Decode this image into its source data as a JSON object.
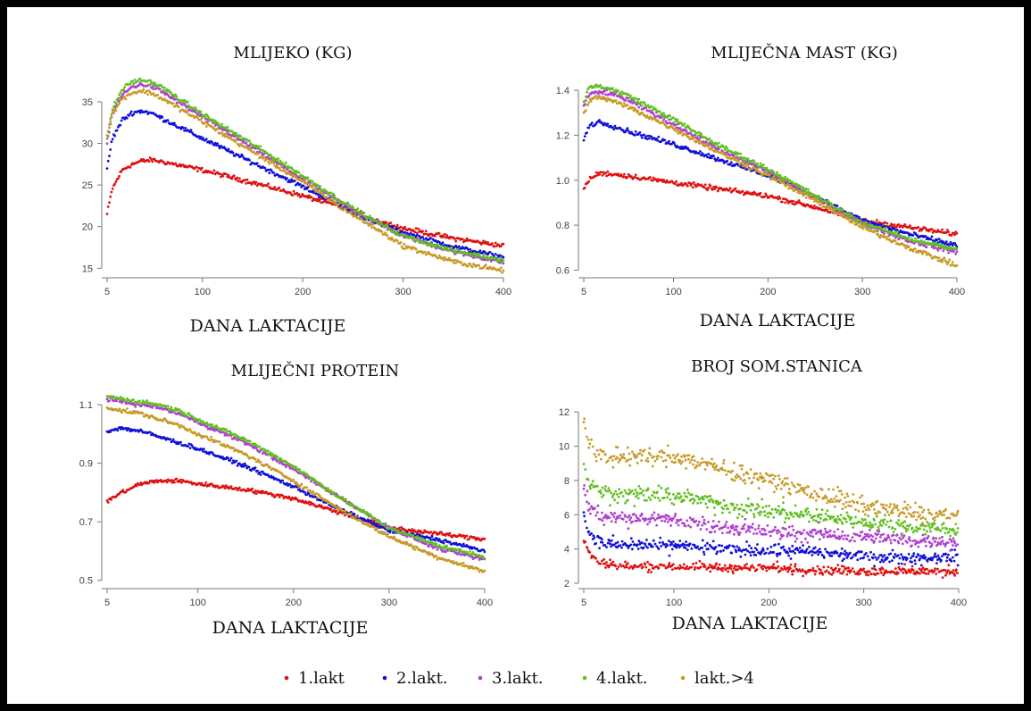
{
  "legend": {
    "items": [
      {
        "label": "1.lakt",
        "color": "#e01010"
      },
      {
        "label": "2.lakt.",
        "color": "#1010d8"
      },
      {
        "label": "3.lakt.",
        "color": "#b040d0"
      },
      {
        "label": "4.lakt.",
        "color": "#60c020"
      },
      {
        "label": "lakt.>4",
        "color": "#c89a28"
      }
    ]
  },
  "chart_data": [
    {
      "type": "scatter",
      "title": "MLIJEKO (KG)",
      "xlabel": "DANA LAKTACIJE",
      "ylabel": "",
      "xlim": [
        5,
        400
      ],
      "ylim": [
        14.5,
        38
      ],
      "xticks": [
        5,
        100,
        200,
        300,
        400
      ],
      "yticks": [
        15,
        20,
        25,
        30,
        35
      ],
      "ytick_labels": [
        "15",
        "20",
        "25",
        "30",
        "35"
      ],
      "series": [
        {
          "name": "1.lakt",
          "x": [
            5,
            10,
            20,
            30,
            40,
            50,
            60,
            80,
            100,
            150,
            200,
            250,
            270,
            300,
            350,
            400
          ],
          "y": [
            21.5,
            24.5,
            26.8,
            27.5,
            27.9,
            28.0,
            27.8,
            27.3,
            26.8,
            25.3,
            23.7,
            22.0,
            20.9,
            19.8,
            18.6,
            17.7
          ],
          "noise": 0.2
        },
        {
          "name": "2.lakt.",
          "x": [
            5,
            10,
            20,
            30,
            40,
            50,
            60,
            80,
            100,
            150,
            200,
            250,
            270,
            300,
            350,
            400
          ],
          "y": [
            27,
            30.5,
            32.8,
            33.7,
            33.9,
            33.6,
            33.0,
            31.8,
            30.6,
            27.7,
            24.8,
            21.8,
            20.6,
            19.3,
            17.6,
            16.3
          ],
          "noise": 0.2
        },
        {
          "name": "3.lakt.",
          "x": [
            5,
            10,
            20,
            30,
            40,
            50,
            60,
            80,
            100,
            150,
            200,
            250,
            270,
            300,
            350,
            400
          ],
          "y": [
            30,
            33.5,
            35.8,
            36.8,
            37.1,
            36.8,
            36.2,
            34.7,
            33.2,
            29.5,
            25.7,
            22.0,
            20.7,
            18.9,
            17.0,
            15.7
          ],
          "noise": 0.2
        },
        {
          "name": "4.lakt.",
          "x": [
            5,
            10,
            20,
            30,
            40,
            50,
            60,
            80,
            100,
            150,
            200,
            250,
            270,
            300,
            350,
            400
          ],
          "y": [
            30.5,
            34,
            36.5,
            37.4,
            37.6,
            37.3,
            36.7,
            35.1,
            33.5,
            29.9,
            26.1,
            22.2,
            20.8,
            18.9,
            17.1,
            16.0
          ],
          "noise": 0.2
        },
        {
          "name": "lakt.>4",
          "x": [
            5,
            10,
            20,
            30,
            40,
            50,
            60,
            80,
            100,
            150,
            200,
            250,
            270,
            300,
            350,
            400
          ],
          "y": [
            31,
            33.5,
            35.4,
            36.1,
            36.3,
            36.0,
            35.4,
            34.0,
            32.6,
            29.0,
            25.4,
            21.4,
            20.0,
            17.7,
            15.8,
            14.7
          ],
          "noise": 0.2
        }
      ]
    },
    {
      "type": "scatter",
      "title": "MLIJEČNA MAST (KG)",
      "xlabel": "DANA LAKTACIJE",
      "ylabel": "",
      "xlim": [
        5,
        400
      ],
      "ylim": [
        0.59,
        1.44
      ],
      "xticks": [
        5,
        100,
        200,
        300,
        400
      ],
      "yticks": [
        0.6,
        0.8,
        1.0,
        1.2,
        1.4
      ],
      "ytick_labels": [
        "0.6",
        "0.8",
        "1.0",
        "1.2",
        "1.4"
      ],
      "series": [
        {
          "name": "1.lakt",
          "x": [
            5,
            10,
            20,
            30,
            50,
            100,
            150,
            200,
            250,
            300,
            350,
            400
          ],
          "y": [
            0.96,
            1.0,
            1.03,
            1.03,
            1.02,
            0.99,
            0.96,
            0.93,
            0.88,
            0.82,
            0.79,
            0.76
          ],
          "noise": 0.008
        },
        {
          "name": "2.lakt.",
          "x": [
            5,
            10,
            20,
            30,
            50,
            100,
            150,
            200,
            250,
            300,
            350,
            400
          ],
          "y": [
            1.18,
            1.24,
            1.26,
            1.25,
            1.22,
            1.16,
            1.09,
            1.02,
            0.93,
            0.82,
            0.76,
            0.71
          ],
          "noise": 0.008
        },
        {
          "name": "3.lakt.",
          "x": [
            5,
            10,
            20,
            30,
            50,
            100,
            150,
            200,
            250,
            300,
            350,
            400
          ],
          "y": [
            1.33,
            1.38,
            1.39,
            1.39,
            1.36,
            1.25,
            1.13,
            1.04,
            0.92,
            0.81,
            0.73,
            0.68
          ],
          "noise": 0.008
        },
        {
          "name": "4.lakt.",
          "x": [
            5,
            10,
            20,
            30,
            50,
            100,
            150,
            200,
            250,
            300,
            350,
            400
          ],
          "y": [
            1.35,
            1.41,
            1.42,
            1.41,
            1.38,
            1.27,
            1.15,
            1.05,
            0.93,
            0.81,
            0.74,
            0.69
          ],
          "noise": 0.008
        },
        {
          "name": "lakt.>4",
          "x": [
            5,
            10,
            20,
            30,
            50,
            100,
            150,
            200,
            250,
            300,
            350,
            400
          ],
          "y": [
            1.3,
            1.35,
            1.37,
            1.36,
            1.33,
            1.23,
            1.12,
            1.02,
            0.91,
            0.79,
            0.7,
            0.62
          ],
          "noise": 0.008
        }
      ]
    },
    {
      "type": "scatter",
      "title": "MLIJEČNI PROTEIN",
      "xlabel": "DANA LAKTACIJE",
      "ylabel": "",
      "xlim": [
        5,
        400
      ],
      "ylim": [
        0.49,
        1.14
      ],
      "xticks": [
        5,
        100,
        200,
        300,
        400
      ],
      "yticks": [
        0.5,
        0.7,
        0.9,
        1.1
      ],
      "ytick_labels": [
        "0.5",
        "0.7",
        "0.9",
        "1.1"
      ],
      "series": [
        {
          "name": "1.lakt",
          "x": [
            5,
            20,
            40,
            60,
            80,
            100,
            150,
            200,
            250,
            300,
            350,
            400
          ],
          "y": [
            0.77,
            0.8,
            0.83,
            0.84,
            0.84,
            0.83,
            0.81,
            0.78,
            0.73,
            0.68,
            0.66,
            0.64
          ],
          "noise": 0.005
        },
        {
          "name": "2.lakt.",
          "x": [
            5,
            20,
            40,
            60,
            80,
            100,
            150,
            200,
            250,
            300,
            350,
            400
          ],
          "y": [
            1.01,
            1.02,
            1.01,
            0.99,
            0.97,
            0.95,
            0.89,
            0.82,
            0.74,
            0.67,
            0.64,
            0.6
          ],
          "noise": 0.005
        },
        {
          "name": "3.lakt.",
          "x": [
            5,
            20,
            40,
            60,
            80,
            100,
            150,
            200,
            250,
            300,
            350,
            400
          ],
          "y": [
            1.12,
            1.11,
            1.1,
            1.09,
            1.07,
            1.04,
            0.97,
            0.88,
            0.78,
            0.68,
            0.61,
            0.57
          ],
          "noise": 0.005
        },
        {
          "name": "4.lakt.",
          "x": [
            5,
            20,
            40,
            60,
            80,
            100,
            150,
            200,
            250,
            300,
            350,
            400
          ],
          "y": [
            1.13,
            1.12,
            1.11,
            1.1,
            1.08,
            1.05,
            0.98,
            0.89,
            0.78,
            0.68,
            0.62,
            0.58
          ],
          "noise": 0.005
        },
        {
          "name": "lakt.>4",
          "x": [
            5,
            20,
            40,
            60,
            80,
            100,
            150,
            200,
            250,
            300,
            350,
            400
          ],
          "y": [
            1.09,
            1.08,
            1.07,
            1.05,
            1.03,
            1.0,
            0.93,
            0.84,
            0.74,
            0.65,
            0.58,
            0.53
          ],
          "noise": 0.005
        }
      ]
    },
    {
      "type": "scatter",
      "title": "BROJ SOM.STANICA",
      "xlabel": "DANA LAKTACIJE",
      "ylabel": "",
      "xlim": [
        5,
        400
      ],
      "ylim": [
        2,
        13
      ],
      "xticks": [
        5,
        100,
        200,
        300,
        400
      ],
      "yticks": [
        2,
        4,
        6,
        8,
        10,
        12
      ],
      "ytick_labels": [
        "2",
        "4",
        "6",
        "8",
        "10",
        "12"
      ],
      "series": [
        {
          "name": "1.lakt",
          "x": [
            5,
            10,
            20,
            30,
            50,
            100,
            150,
            200,
            250,
            300,
            350,
            400
          ],
          "y": [
            4.5,
            3.8,
            3.3,
            3.1,
            3.0,
            3.0,
            2.9,
            2.9,
            2.8,
            2.7,
            2.7,
            2.7
          ],
          "noise": 0.15
        },
        {
          "name": "2.lakt.",
          "x": [
            5,
            10,
            20,
            30,
            50,
            100,
            150,
            200,
            250,
            300,
            350,
            400
          ],
          "y": [
            6.0,
            5.0,
            4.5,
            4.3,
            4.2,
            4.2,
            4.0,
            3.9,
            3.8,
            3.6,
            3.5,
            3.5
          ],
          "noise": 0.2
        },
        {
          "name": "3.lakt.",
          "x": [
            5,
            10,
            20,
            30,
            50,
            100,
            150,
            200,
            250,
            300,
            350,
            400
          ],
          "y": [
            7.5,
            6.5,
            6.0,
            5.9,
            5.8,
            5.7,
            5.3,
            5.0,
            4.9,
            4.7,
            4.5,
            4.4
          ],
          "noise": 0.25
        },
        {
          "name": "4.lakt.",
          "x": [
            5,
            10,
            20,
            30,
            50,
            100,
            150,
            200,
            250,
            300,
            350,
            400
          ],
          "y": [
            9.0,
            8.0,
            7.4,
            7.3,
            7.2,
            7.1,
            6.6,
            6.2,
            5.9,
            5.6,
            5.3,
            5.1
          ],
          "noise": 0.28
        },
        {
          "name": "lakt.>4",
          "x": [
            5,
            10,
            20,
            30,
            50,
            100,
            150,
            200,
            250,
            300,
            350,
            400
          ],
          "y": [
            11.5,
            10.2,
            9.5,
            9.3,
            9.4,
            9.4,
            8.7,
            8.0,
            7.2,
            6.5,
            6.1,
            5.9
          ],
          "noise": 0.3
        }
      ]
    }
  ]
}
